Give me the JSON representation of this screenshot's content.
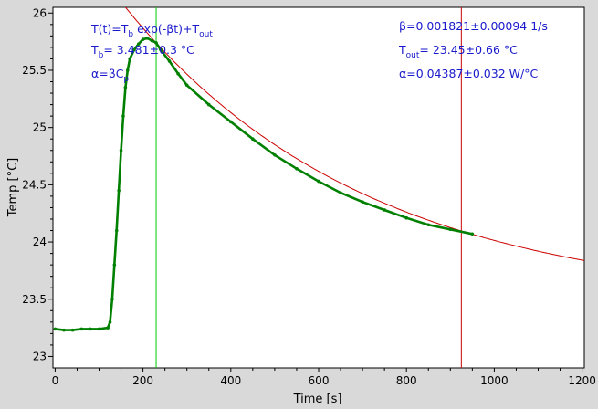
{
  "chart_data": {
    "type": "scatter",
    "xlabel": "Time [s]",
    "ylabel": "Temp [°C]",
    "xlim": [
      -5,
      1205
    ],
    "ylim": [
      22.9,
      26.05
    ],
    "x_ticks": [
      0,
      200,
      400,
      600,
      800,
      1000,
      1200
    ],
    "y_ticks": [
      23,
      23.5,
      24,
      24.5,
      25,
      25.5,
      26
    ],
    "y_tick_labels": [
      "23",
      "23.5",
      "24",
      "24.5",
      "25",
      "25.5",
      "26"
    ],
    "grid": false,
    "background_color": "#ffffff",
    "frame_color": "#d9d9d9",
    "series": [
      {
        "kind": "measured",
        "color": "#008000",
        "points": [
          [
            0,
            23.24
          ],
          [
            20,
            23.23
          ],
          [
            40,
            23.23
          ],
          [
            60,
            23.24
          ],
          [
            80,
            23.24
          ],
          [
            100,
            23.24
          ],
          [
            120,
            23.25
          ],
          [
            125,
            23.3
          ],
          [
            130,
            23.5
          ],
          [
            135,
            23.8
          ],
          [
            140,
            24.1
          ],
          [
            145,
            24.45
          ],
          [
            150,
            24.8
          ],
          [
            155,
            25.1
          ],
          [
            160,
            25.35
          ],
          [
            165,
            25.5
          ],
          [
            170,
            25.6
          ],
          [
            180,
            25.68
          ],
          [
            190,
            25.73
          ],
          [
            200,
            25.77
          ],
          [
            210,
            25.78
          ],
          [
            220,
            25.76
          ],
          [
            230,
            25.74
          ],
          [
            240,
            25.68
          ],
          [
            260,
            25.58
          ],
          [
            280,
            25.47
          ],
          [
            300,
            25.37
          ],
          [
            350,
            25.2
          ],
          [
            400,
            25.05
          ],
          [
            450,
            24.9
          ],
          [
            500,
            24.76
          ],
          [
            550,
            24.64
          ],
          [
            600,
            24.53
          ],
          [
            650,
            24.43
          ],
          [
            700,
            24.35
          ],
          [
            750,
            24.28
          ],
          [
            800,
            24.21
          ],
          [
            850,
            24.15
          ],
          [
            900,
            24.11
          ],
          [
            950,
            24.07
          ]
        ]
      },
      {
        "kind": "fit",
        "color": "#cc0000",
        "formula": "23.45 + 3.481*exp(-0.001821*t)"
      }
    ],
    "vertical_lines": [
      {
        "x": 230,
        "color": "#00cc00"
      },
      {
        "x": 925,
        "color": "#cc0000"
      }
    ],
    "annotations": {
      "model": {
        "text": "T(t)=T",
        "sub1": "b",
        "mid": " exp(-βt)+T",
        "sub2": "out"
      },
      "tb": {
        "text": "T",
        "sub": "b",
        "rest": "= 3.481±0.3 °C"
      },
      "alpha_def": {
        "text": "α=βC",
        "sub": "p"
      },
      "beta": {
        "text": "β=0.001821±0.00094 1/s"
      },
      "tout": {
        "text": "T",
        "sub": "out",
        "rest": "= 23.45±0.66 °C"
      },
      "alpha_val": {
        "text": "α=0.04387±0.032 W/°C"
      }
    }
  }
}
